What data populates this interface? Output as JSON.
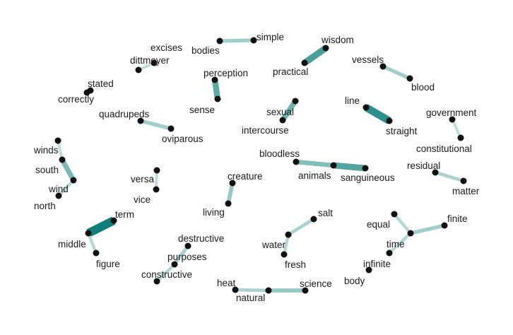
{
  "colors": {
    "node": "#111111",
    "edge_scale": [
      "#cfe8e6",
      "#0f7f7c"
    ]
  },
  "nodes": [
    {
      "id": "bodies",
      "label": "bodies"
    },
    {
      "id": "simple",
      "label": "simple"
    },
    {
      "id": "excises",
      "label": "excises"
    },
    {
      "id": "dittmeyer",
      "label": "dittmeyer"
    },
    {
      "id": "wisdom",
      "label": "wisdom"
    },
    {
      "id": "practical",
      "label": "practical"
    },
    {
      "id": "vessels",
      "label": "vessels"
    },
    {
      "id": "blood",
      "label": "blood"
    },
    {
      "id": "perception",
      "label": "perception"
    },
    {
      "id": "sense",
      "label": "sense"
    },
    {
      "id": "stated",
      "label": "stated"
    },
    {
      "id": "correctly",
      "label": "correctly"
    },
    {
      "id": "sexual",
      "label": "sexual"
    },
    {
      "id": "intercourse",
      "label": "intercourse"
    },
    {
      "id": "line",
      "label": "line"
    },
    {
      "id": "straight",
      "label": "straight"
    },
    {
      "id": "government",
      "label": "government"
    },
    {
      "id": "constitutional",
      "label": "constitutional"
    },
    {
      "id": "quadrupeds",
      "label": "quadrupeds"
    },
    {
      "id": "oviparous",
      "label": "oviparous"
    },
    {
      "id": "winds",
      "label": "winds"
    },
    {
      "id": "south",
      "label": "south"
    },
    {
      "id": "wind",
      "label": "wind"
    },
    {
      "id": "north",
      "label": "north"
    },
    {
      "id": "bloodless",
      "label": "bloodless"
    },
    {
      "id": "animals",
      "label": "animals"
    },
    {
      "id": "sanguineous",
      "label": "sanguineous"
    },
    {
      "id": "residual",
      "label": "residual"
    },
    {
      "id": "matter",
      "label": "matter"
    },
    {
      "id": "versa",
      "label": "versa"
    },
    {
      "id": "vice",
      "label": "vice"
    },
    {
      "id": "creature",
      "label": "creature"
    },
    {
      "id": "living",
      "label": "living"
    },
    {
      "id": "salt",
      "label": "salt"
    },
    {
      "id": "water",
      "label": "water"
    },
    {
      "id": "fresh",
      "label": "fresh"
    },
    {
      "id": "term",
      "label": "term"
    },
    {
      "id": "middle",
      "label": "middle"
    },
    {
      "id": "figure",
      "label": "figure"
    },
    {
      "id": "equal",
      "label": "equal"
    },
    {
      "id": "finite",
      "label": "finite"
    },
    {
      "id": "time",
      "label": "time"
    },
    {
      "id": "infinite",
      "label": "infinite"
    },
    {
      "id": "body",
      "label": "body"
    },
    {
      "id": "destructive",
      "label": "destructive"
    },
    {
      "id": "purposes",
      "label": "purposes"
    },
    {
      "id": "constructive",
      "label": "constructive"
    },
    {
      "id": "heat",
      "label": "heat"
    },
    {
      "id": "natural",
      "label": "natural"
    },
    {
      "id": "science",
      "label": "science"
    }
  ],
  "edges": [
    {
      "source": "bodies",
      "target": "simple",
      "weight": 0.25
    },
    {
      "source": "excises",
      "target": "dittmeyer",
      "weight": 0.1
    },
    {
      "source": "wisdom",
      "target": "practical",
      "weight": 0.7
    },
    {
      "source": "vessels",
      "target": "blood",
      "weight": 0.25
    },
    {
      "source": "perception",
      "target": "sense",
      "weight": 0.6
    },
    {
      "source": "stated",
      "target": "correctly",
      "weight": 0.1
    },
    {
      "source": "sexual",
      "target": "intercourse",
      "weight": 0.5
    },
    {
      "source": "line",
      "target": "straight",
      "weight": 0.85
    },
    {
      "source": "government",
      "target": "constitutional",
      "weight": 0.1
    },
    {
      "source": "quadrupeds",
      "target": "oviparous",
      "weight": 0.25
    },
    {
      "source": "winds",
      "target": "south",
      "weight": 0.1
    },
    {
      "source": "south",
      "target": "wind",
      "weight": 0.45
    },
    {
      "source": "wind",
      "target": "north",
      "weight": 0.15
    },
    {
      "source": "bloodless",
      "target": "animals",
      "weight": 0.4
    },
    {
      "source": "animals",
      "target": "sanguineous",
      "weight": 0.65
    },
    {
      "source": "residual",
      "target": "matter",
      "weight": 0.2
    },
    {
      "source": "versa",
      "target": "vice",
      "weight": 0.1
    },
    {
      "source": "creature",
      "target": "living",
      "weight": 0.3
    },
    {
      "source": "salt",
      "target": "water",
      "weight": 0.2
    },
    {
      "source": "water",
      "target": "fresh",
      "weight": 0.15
    },
    {
      "source": "term",
      "target": "middle",
      "weight": 1.0
    },
    {
      "source": "middle",
      "target": "figure",
      "weight": 0.15
    },
    {
      "source": "equal",
      "target": "time",
      "weight": 0.15
    },
    {
      "source": "finite",
      "target": "time",
      "weight": 0.25
    },
    {
      "source": "time",
      "target": "infinite",
      "weight": 0.15
    },
    {
      "source": "destructive",
      "target": "purposes",
      "weight": 0.2
    },
    {
      "source": "purposes",
      "target": "constructive",
      "weight": 0.15
    },
    {
      "source": "heat",
      "target": "natural",
      "weight": 0.2
    },
    {
      "source": "natural",
      "target": "science",
      "weight": 0.3
    }
  ]
}
